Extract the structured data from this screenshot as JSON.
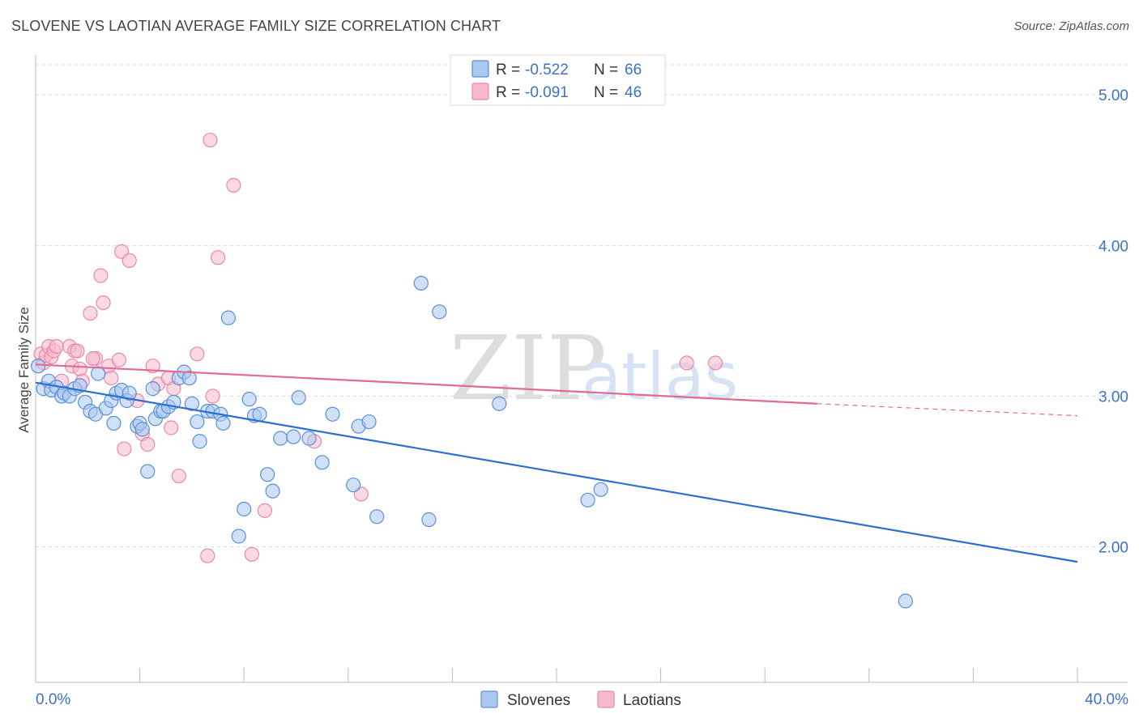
{
  "header": {
    "title": "SLOVENE VS LAOTIAN AVERAGE FAMILY SIZE CORRELATION CHART",
    "source": "Source: ZipAtlas.com"
  },
  "watermark": {
    "zip": "ZIP",
    "atlas": "atlas"
  },
  "legend": {
    "rows": [
      {
        "r_label": "R = ",
        "r_value": "-0.522",
        "n_label": "N = ",
        "n_value": "66"
      },
      {
        "r_label": "R = ",
        "r_value": "-0.091",
        "n_label": "N = ",
        "n_value": "46"
      }
    ]
  },
  "colors": {
    "slovenes_fill": "#a9c8f0",
    "slovenes_stroke": "#5b8fd6",
    "slovenes_line": "#2a6fd1",
    "laotians_fill": "#f6b9cd",
    "laotians_stroke": "#e889a8",
    "laotians_line": "#e26b91",
    "grid": "#dddddd",
    "tick_text": "#3a73c4"
  },
  "chart_data": {
    "type": "scatter",
    "title": "SLOVENE VS LAOTIAN AVERAGE FAMILY SIZE CORRELATION CHART",
    "xlabel": "",
    "ylabel": "Average Family Size",
    "xlim": [
      0,
      40
    ],
    "ylim": [
      1.1,
      5.2
    ],
    "x_tick_labels": [
      "0.0%",
      "40.0%"
    ],
    "y_ticks": [
      2.0,
      3.0,
      4.0,
      5.0
    ],
    "y_tick_labels": [
      "2.00",
      "3.00",
      "4.00",
      "5.00"
    ],
    "grid": true,
    "legend_position": "top-center",
    "series": [
      {
        "name": "Slovenes",
        "points": [
          [
            0.1,
            3.2
          ],
          [
            0.3,
            3.05
          ],
          [
            0.5,
            3.1
          ],
          [
            0.6,
            3.04
          ],
          [
            0.8,
            3.06
          ],
          [
            1.0,
            3.0
          ],
          [
            1.1,
            3.02
          ],
          [
            1.3,
            3.0
          ],
          [
            1.5,
            3.05
          ],
          [
            1.7,
            3.07
          ],
          [
            1.9,
            2.96
          ],
          [
            2.1,
            2.9
          ],
          [
            2.3,
            2.88
          ],
          [
            2.4,
            3.15
          ],
          [
            2.7,
            2.92
          ],
          [
            2.9,
            2.97
          ],
          [
            3.0,
            2.82
          ],
          [
            3.1,
            3.02
          ],
          [
            3.3,
            3.04
          ],
          [
            3.5,
            2.97
          ],
          [
            3.6,
            3.02
          ],
          [
            3.9,
            2.8
          ],
          [
            4.0,
            2.82
          ],
          [
            4.1,
            2.78
          ],
          [
            4.3,
            2.5
          ],
          [
            4.5,
            3.05
          ],
          [
            4.6,
            2.85
          ],
          [
            4.8,
            2.9
          ],
          [
            4.9,
            2.9
          ],
          [
            5.1,
            2.93
          ],
          [
            5.3,
            2.96
          ],
          [
            5.5,
            3.12
          ],
          [
            5.7,
            3.16
          ],
          [
            5.9,
            3.12
          ],
          [
            6.0,
            2.95
          ],
          [
            6.2,
            2.83
          ],
          [
            6.3,
            2.7
          ],
          [
            6.6,
            2.9
          ],
          [
            6.8,
            2.9
          ],
          [
            7.1,
            2.88
          ],
          [
            7.2,
            2.82
          ],
          [
            7.4,
            3.52
          ],
          [
            7.8,
            2.07
          ],
          [
            8.0,
            2.25
          ],
          [
            8.2,
            2.98
          ],
          [
            8.4,
            2.87
          ],
          [
            8.6,
            2.88
          ],
          [
            8.9,
            2.48
          ],
          [
            9.1,
            2.37
          ],
          [
            9.4,
            2.72
          ],
          [
            9.9,
            2.73
          ],
          [
            10.1,
            2.99
          ],
          [
            10.5,
            2.72
          ],
          [
            11.0,
            2.56
          ],
          [
            11.4,
            2.88
          ],
          [
            12.2,
            2.41
          ],
          [
            12.4,
            2.8
          ],
          [
            12.8,
            2.83
          ],
          [
            13.1,
            2.2
          ],
          [
            14.8,
            3.75
          ],
          [
            15.1,
            2.18
          ],
          [
            15.5,
            3.56
          ],
          [
            17.8,
            2.95
          ],
          [
            21.2,
            2.31
          ],
          [
            21.7,
            2.38
          ],
          [
            33.4,
            1.64
          ]
        ]
      },
      {
        "name": "Laotians",
        "points": [
          [
            0.2,
            3.28
          ],
          [
            0.3,
            3.22
          ],
          [
            0.4,
            3.27
          ],
          [
            0.5,
            3.33
          ],
          [
            0.6,
            3.26
          ],
          [
            0.7,
            3.3
          ],
          [
            0.8,
            3.33
          ],
          [
            1.0,
            3.1
          ],
          [
            1.3,
            3.33
          ],
          [
            1.4,
            3.2
          ],
          [
            1.5,
            3.3
          ],
          [
            1.7,
            3.18
          ],
          [
            1.8,
            3.1
          ],
          [
            2.1,
            3.55
          ],
          [
            2.3,
            3.25
          ],
          [
            2.5,
            3.8
          ],
          [
            2.6,
            3.62
          ],
          [
            2.8,
            3.2
          ],
          [
            2.9,
            3.12
          ],
          [
            3.2,
            3.24
          ],
          [
            3.3,
            3.96
          ],
          [
            3.4,
            2.65
          ],
          [
            3.6,
            3.9
          ],
          [
            3.9,
            2.97
          ],
          [
            4.1,
            2.75
          ],
          [
            4.3,
            2.68
          ],
          [
            4.5,
            3.2
          ],
          [
            4.7,
            3.08
          ],
          [
            5.1,
            3.12
          ],
          [
            5.2,
            2.79
          ],
          [
            5.3,
            3.05
          ],
          [
            5.5,
            2.47
          ],
          [
            6.2,
            3.28
          ],
          [
            6.6,
            1.94
          ],
          [
            6.7,
            4.7
          ],
          [
            6.8,
            3.0
          ],
          [
            7.0,
            3.92
          ],
          [
            7.6,
            4.4
          ],
          [
            8.3,
            1.95
          ],
          [
            8.8,
            2.24
          ],
          [
            10.7,
            2.7
          ],
          [
            12.5,
            2.35
          ],
          [
            1.6,
            3.3
          ],
          [
            2.2,
            3.25
          ],
          [
            25.0,
            3.22
          ],
          [
            26.1,
            3.22
          ]
        ]
      }
    ],
    "trend_lines": [
      {
        "name": "Slovenes",
        "x": [
          0,
          40
        ],
        "y": [
          3.09,
          1.9
        ],
        "dashed_from": null
      },
      {
        "name": "Laotians",
        "x": [
          0,
          30,
          40
        ],
        "y": [
          3.21,
          2.95,
          2.87
        ],
        "dashed_from": 30
      }
    ]
  },
  "bottom_legend": {
    "items": [
      {
        "label": "Slovenes"
      },
      {
        "label": "Laotians"
      }
    ]
  }
}
